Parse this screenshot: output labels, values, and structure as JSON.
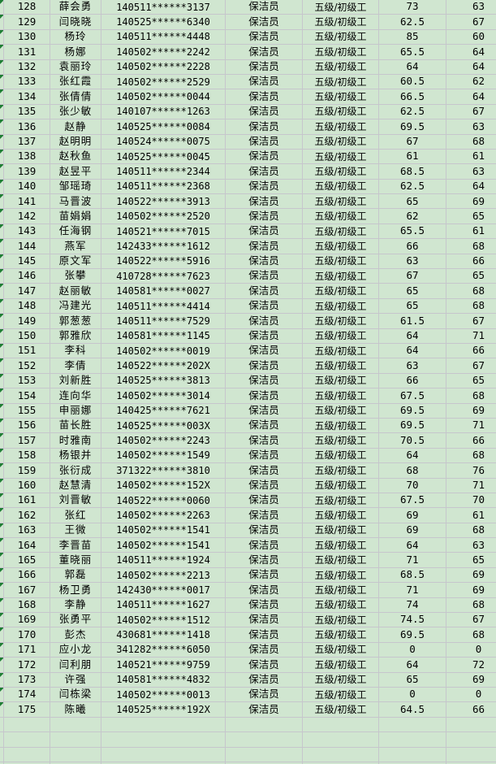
{
  "app": {
    "kind": "spreadsheet-grid",
    "visible_row_range": "128-175",
    "language": "zh-CN"
  },
  "colors": {
    "cell_background": "#d0e6d0",
    "gridline": "#c6c6cc",
    "error_triangle": "#1e7e34",
    "text": "#000000"
  },
  "columns": [
    {
      "key": "seq",
      "note": "sequence number"
    },
    {
      "key": "name",
      "note": "person name"
    },
    {
      "key": "id",
      "note": "masked id number"
    },
    {
      "key": "job",
      "note": "job title"
    },
    {
      "key": "level",
      "note": "skill level"
    },
    {
      "key": "score1",
      "note": "score column 1"
    },
    {
      "key": "score2",
      "note": "score column 2"
    }
  ],
  "rows": [
    [
      "128",
      "薛会勇",
      "140511******3137",
      "保洁员",
      "五级/初级工",
      "73",
      "63"
    ],
    [
      "129",
      "闫晓晓",
      "140525******6340",
      "保洁员",
      "五级/初级工",
      "62.5",
      "67"
    ],
    [
      "130",
      "杨玲",
      "140511******4448",
      "保洁员",
      "五级/初级工",
      "85",
      "60"
    ],
    [
      "131",
      "杨娜",
      "140502******2242",
      "保洁员",
      "五级/初级工",
      "65.5",
      "64"
    ],
    [
      "132",
      "袁丽玲",
      "140502******2228",
      "保洁员",
      "五级/初级工",
      "64",
      "64"
    ],
    [
      "133",
      "张红霞",
      "140502******2529",
      "保洁员",
      "五级/初级工",
      "60.5",
      "62"
    ],
    [
      "134",
      "张倩倩",
      "140502******0044",
      "保洁员",
      "五级/初级工",
      "66.5",
      "64"
    ],
    [
      "135",
      "张少敏",
      "140107******1263",
      "保洁员",
      "五级/初级工",
      "62.5",
      "67"
    ],
    [
      "136",
      "赵静",
      "140525******0084",
      "保洁员",
      "五级/初级工",
      "69.5",
      "63"
    ],
    [
      "137",
      "赵明明",
      "140524******0075",
      "保洁员",
      "五级/初级工",
      "67",
      "68"
    ],
    [
      "138",
      "赵秋鱼",
      "140525******0045",
      "保洁员",
      "五级/初级工",
      "61",
      "61"
    ],
    [
      "139",
      "赵昱平",
      "140511******2344",
      "保洁员",
      "五级/初级工",
      "68.5",
      "63"
    ],
    [
      "140",
      "邹瑶琦",
      "140511******2368",
      "保洁员",
      "五级/初级工",
      "62.5",
      "64"
    ],
    [
      "141",
      "马晋波",
      "140522******3913",
      "保洁员",
      "五级/初级工",
      "65",
      "69"
    ],
    [
      "142",
      "苗娟娟",
      "140502******2520",
      "保洁员",
      "五级/初级工",
      "62",
      "65"
    ],
    [
      "143",
      "任海钢",
      "140521******7015",
      "保洁员",
      "五级/初级工",
      "65.5",
      "61"
    ],
    [
      "144",
      "燕军",
      "142433******1612",
      "保洁员",
      "五级/初级工",
      "66",
      "68"
    ],
    [
      "145",
      "原文军",
      "140522******5916",
      "保洁员",
      "五级/初级工",
      "63",
      "66"
    ],
    [
      "146",
      "张攀",
      "410728******7623",
      "保洁员",
      "五级/初级工",
      "67",
      "65"
    ],
    [
      "147",
      "赵丽敏",
      "140581******0027",
      "保洁员",
      "五级/初级工",
      "65",
      "68"
    ],
    [
      "148",
      "冯建光",
      "140511******4414",
      "保洁员",
      "五级/初级工",
      "65",
      "68"
    ],
    [
      "149",
      "郭葱葱",
      "140511******7529",
      "保洁员",
      "五级/初级工",
      "61.5",
      "67"
    ],
    [
      "150",
      "郭雅欣",
      "140581******1145",
      "保洁员",
      "五级/初级工",
      "64",
      "71"
    ],
    [
      "151",
      "李科",
      "140502******0019",
      "保洁员",
      "五级/初级工",
      "64",
      "66"
    ],
    [
      "152",
      "李倩",
      "140522******202X",
      "保洁员",
      "五级/初级工",
      "63",
      "67"
    ],
    [
      "153",
      "刘新胜",
      "140525******3813",
      "保洁员",
      "五级/初级工",
      "66",
      "65"
    ],
    [
      "154",
      "连向华",
      "140502******3014",
      "保洁员",
      "五级/初级工",
      "67.5",
      "68"
    ],
    [
      "155",
      "申丽娜",
      "140425******7621",
      "保洁员",
      "五级/初级工",
      "69.5",
      "69"
    ],
    [
      "156",
      "苗长胜",
      "140525******003X",
      "保洁员",
      "五级/初级工",
      "69.5",
      "71"
    ],
    [
      "157",
      "时雅南",
      "140502******2243",
      "保洁员",
      "五级/初级工",
      "70.5",
      "66"
    ],
    [
      "158",
      "杨银并",
      "140502******1549",
      "保洁员",
      "五级/初级工",
      "64",
      "68"
    ],
    [
      "159",
      "张衍成",
      "371322******3810",
      "保洁员",
      "五级/初级工",
      "68",
      "76"
    ],
    [
      "160",
      "赵慧清",
      "140502******152X",
      "保洁员",
      "五级/初级工",
      "70",
      "71"
    ],
    [
      "161",
      "刘晋敏",
      "140522******0060",
      "保洁员",
      "五级/初级工",
      "67.5",
      "70"
    ],
    [
      "162",
      "张红",
      "140502******2263",
      "保洁员",
      "五级/初级工",
      "69",
      "61"
    ],
    [
      "163",
      "王微",
      "140502******1541",
      "保洁员",
      "五级/初级工",
      "69",
      "68"
    ],
    [
      "164",
      "李晋苗",
      "140502******1541",
      "保洁员",
      "五级/初级工",
      "64",
      "63"
    ],
    [
      "165",
      "董晓丽",
      "140511******1924",
      "保洁员",
      "五级/初级工",
      "71",
      "65"
    ],
    [
      "166",
      "郭磊",
      "140502******2213",
      "保洁员",
      "五级/初级工",
      "68.5",
      "69"
    ],
    [
      "167",
      "杨卫勇",
      "142430******0017",
      "保洁员",
      "五级/初级工",
      "71",
      "69"
    ],
    [
      "168",
      "李静",
      "140511******1627",
      "保洁员",
      "五级/初级工",
      "74",
      "68"
    ],
    [
      "169",
      "张勇平",
      "140502******1512",
      "保洁员",
      "五级/初级工",
      "74.5",
      "67"
    ],
    [
      "170",
      "彭杰",
      "430681******1418",
      "保洁员",
      "五级/初级工",
      "69.5",
      "68"
    ],
    [
      "171",
      "应小龙",
      "341282******6050",
      "保洁员",
      "五级/初级工",
      "0",
      "0"
    ],
    [
      "172",
      "闫利朋",
      "140521******9759",
      "保洁员",
      "五级/初级工",
      "64",
      "72"
    ],
    [
      "173",
      "许强",
      "140581******4832",
      "保洁员",
      "五级/初级工",
      "65",
      "69"
    ],
    [
      "174",
      "闫栋梁",
      "140502******0013",
      "保洁员",
      "五级/初级工",
      "0",
      "0"
    ],
    [
      "175",
      "陈曦",
      "140525******192X",
      "保洁员",
      "五级/初级工",
      "64.5",
      "66"
    ]
  ],
  "empty_row_count": 4
}
